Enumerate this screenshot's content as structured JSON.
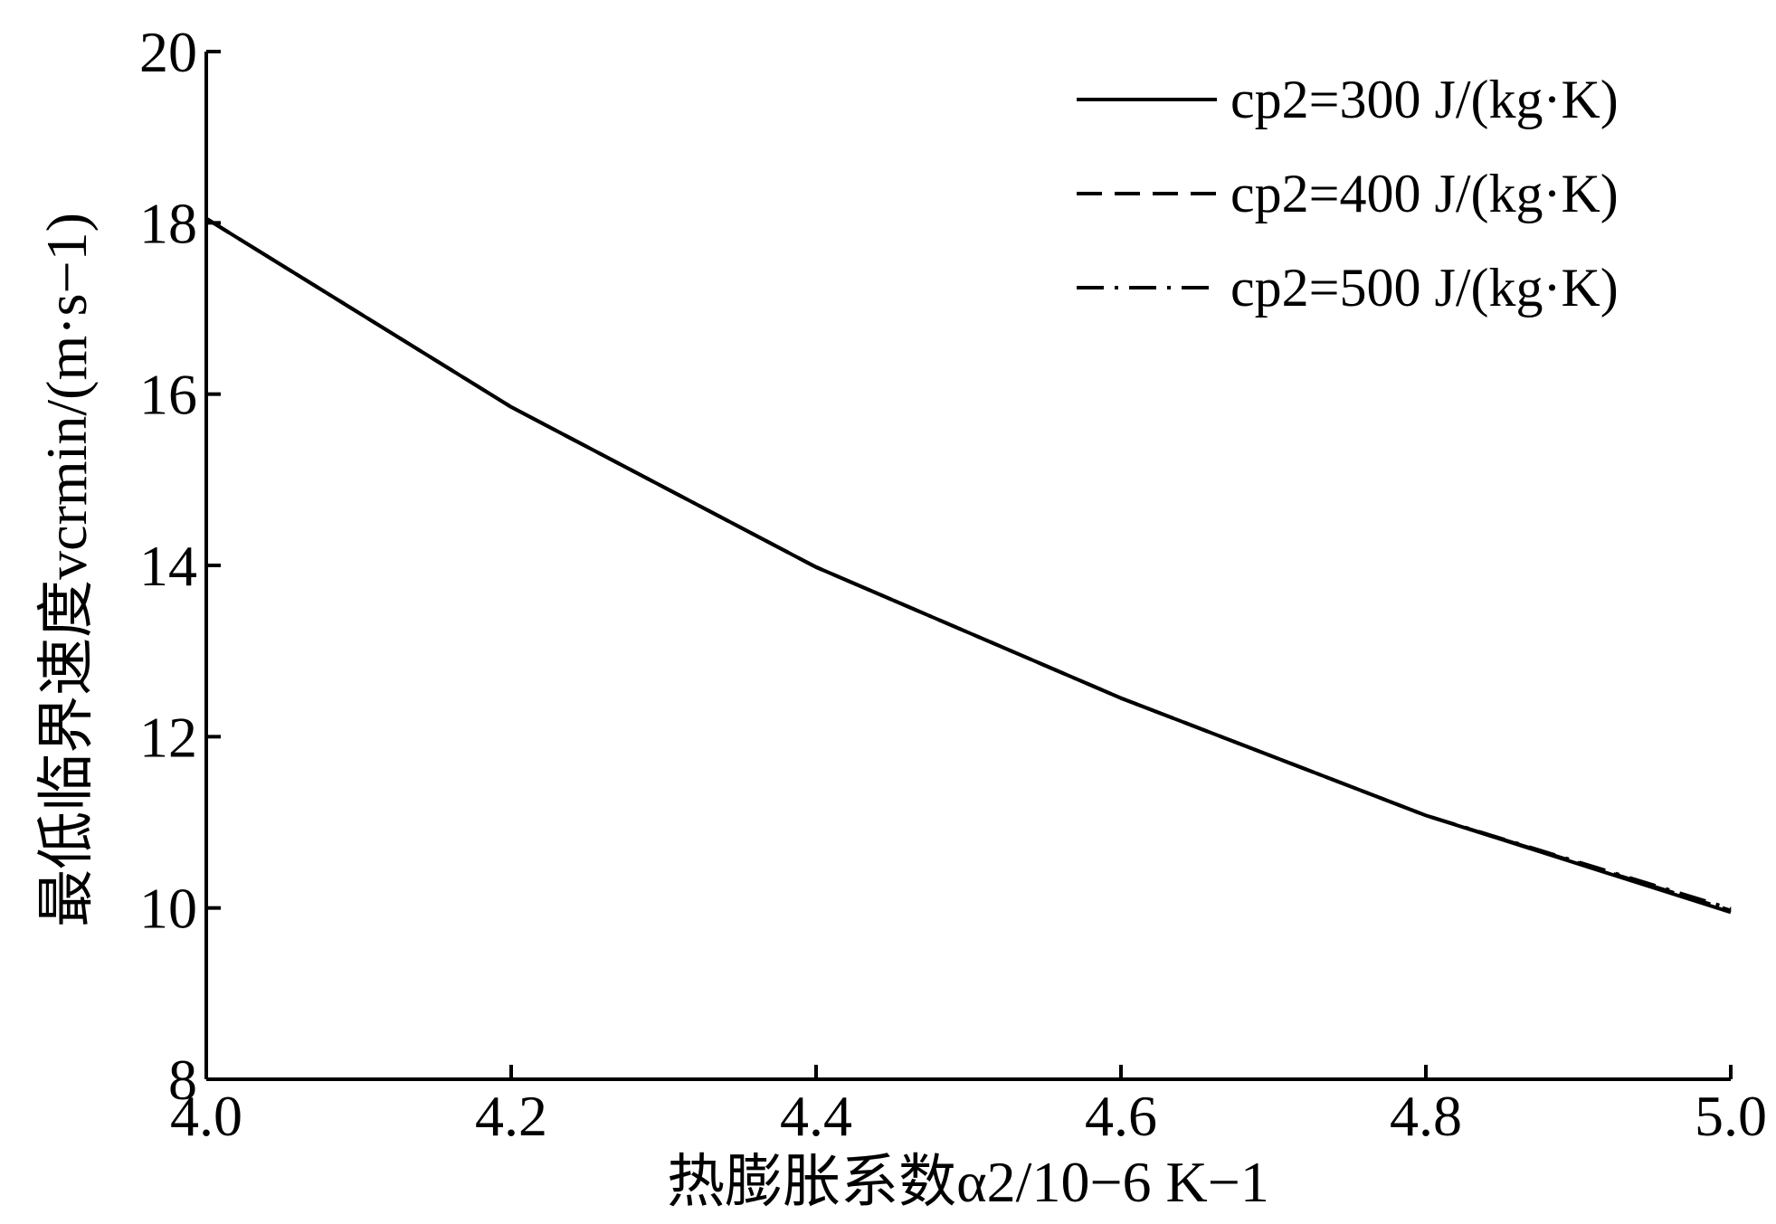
{
  "chart_data": {
    "type": "line",
    "xlabel": "热膨胀系数α2/10−6 K−1",
    "ylabel": "最低临界速度vcrmin/(m·s−1)",
    "xlim": [
      4.0,
      5.0
    ],
    "ylim": [
      8,
      20
    ],
    "x_ticks": [
      "4.0",
      "4.2",
      "4.4",
      "4.6",
      "4.8",
      "5.0"
    ],
    "y_ticks": [
      "8",
      "10",
      "12",
      "14",
      "16",
      "18",
      "20"
    ],
    "grid": false,
    "legend_position": "top-right",
    "x": [
      4.0,
      4.2,
      4.4,
      4.6,
      4.8,
      5.0
    ],
    "series": [
      {
        "name": "cp2=300 J/(kg·K)",
        "line_style": "solid",
        "values": [
          18.05,
          15.85,
          13.98,
          12.45,
          11.08,
          9.95
        ]
      },
      {
        "name": "cp2=400 J/(kg·K)",
        "line_style": "dashed",
        "values": [
          18.05,
          15.85,
          13.98,
          12.45,
          11.08,
          9.97
        ]
      },
      {
        "name": "cp2=500 J/(kg·K)",
        "line_style": "dashdot",
        "values": [
          18.05,
          15.85,
          13.98,
          12.45,
          11.08,
          9.99
        ]
      }
    ]
  }
}
